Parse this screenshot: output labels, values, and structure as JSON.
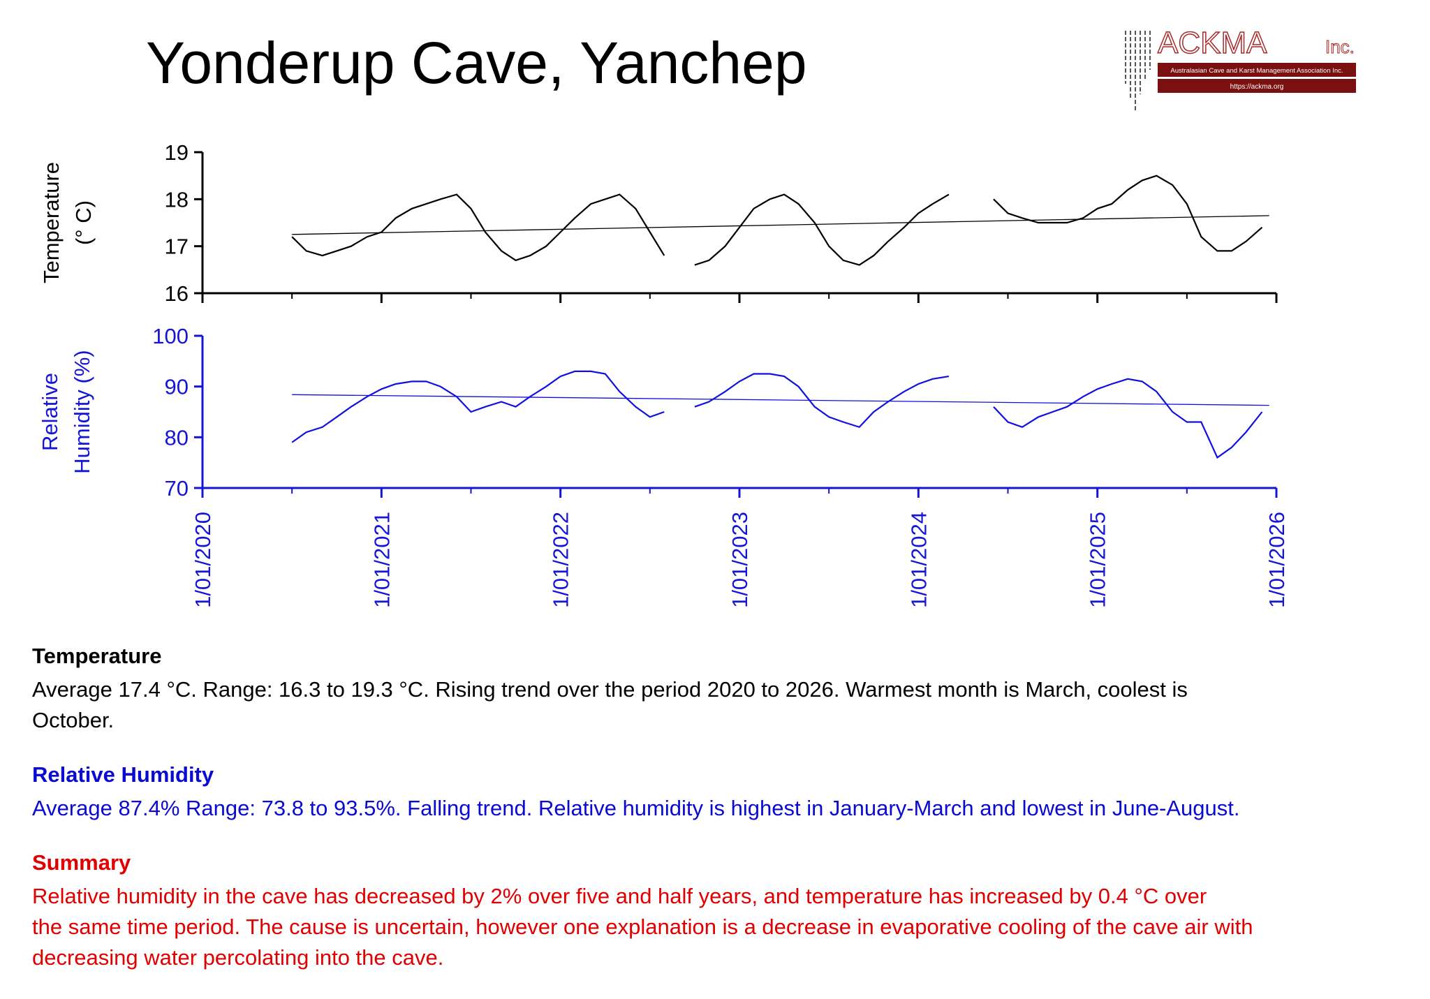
{
  "header": {
    "title": "Yonderup Cave, Yanchep"
  },
  "logo": {
    "name": "ACKMA",
    "suffix": "Inc.",
    "tagline": "Australasian Cave and Karst Management Association Inc.",
    "url": "https://ackma.org"
  },
  "chart_data": [
    {
      "type": "line",
      "ylabel": [
        "Temperature",
        "(° C)"
      ],
      "axis_color": "#000000",
      "xlim": [
        2020,
        2026
      ],
      "xticks": [
        2020,
        2021,
        2022,
        2023,
        2024,
        2025,
        2026
      ],
      "xminor": [
        2020.5,
        2021.5,
        2022.5,
        2023.5,
        2024.5,
        2025.5
      ],
      "ylim": [
        16,
        19
      ],
      "yticks": [
        16,
        17,
        18,
        19
      ],
      "x": [
        2020.5,
        2020.58,
        2020.67,
        2020.75,
        2020.83,
        2020.92,
        2021.0,
        2021.08,
        2021.17,
        2021.25,
        2021.33,
        2021.42,
        2021.5,
        2021.58,
        2021.67,
        2021.75,
        2021.83,
        2021.92,
        2022.0,
        2022.08,
        2022.17,
        2022.25,
        2022.33,
        2022.42,
        2022.5,
        2022.58,
        2022.67,
        2022.75,
        2022.83,
        2022.92,
        2023.0,
        2023.08,
        2023.17,
        2023.25,
        2023.33,
        2023.42,
        2023.5,
        2023.58,
        2023.67,
        2023.75,
        2023.83,
        2023.92,
        2024.0,
        2024.08,
        2024.17,
        2024.25,
        2024.33,
        2024.42,
        2024.5,
        2024.58,
        2024.67,
        2024.75,
        2024.83,
        2024.92,
        2025.0,
        2025.08,
        2025.17,
        2025.25,
        2025.33,
        2025.42,
        2025.5,
        2025.58,
        2025.67,
        2025.75,
        2025.83,
        2025.92
      ],
      "series": [
        {
          "color": "#000000",
          "values": [
            17.2,
            16.9,
            16.8,
            16.9,
            17.0,
            17.2,
            17.3,
            17.6,
            17.8,
            17.9,
            18.0,
            18.1,
            17.8,
            17.3,
            16.9,
            16.7,
            16.8,
            17.0,
            17.3,
            17.6,
            17.9,
            18.0,
            18.1,
            17.8,
            17.3,
            16.8,
            null,
            16.6,
            16.7,
            17.0,
            17.4,
            17.8,
            18.0,
            18.1,
            17.9,
            17.5,
            17.0,
            16.7,
            16.6,
            16.8,
            17.1,
            17.4,
            17.7,
            17.9,
            18.1,
            null,
            null,
            18.0,
            17.7,
            17.6,
            17.5,
            17.5,
            17.5,
            17.6,
            17.8,
            17.9,
            18.2,
            18.4,
            18.5,
            18.3,
            17.9,
            17.2,
            16.9,
            16.9,
            17.1,
            17.4
          ]
        },
        {
          "color": "#000000",
          "x": [
            2020.5,
            2025.96
          ],
          "values": [
            17.25,
            17.65
          ]
        }
      ]
    },
    {
      "type": "line",
      "ylabel": [
        "Relative",
        "Humidity (%)"
      ],
      "axis_color": "#1515d8",
      "xlim": [
        2020,
        2026
      ],
      "xticks": [
        {
          "value": 2020,
          "label": "1/01/2020"
        },
        {
          "value": 2021,
          "label": "1/01/2021"
        },
        {
          "value": 2022,
          "label": "1/01/2022"
        },
        {
          "value": 2023,
          "label": "1/01/2023"
        },
        {
          "value": 2024,
          "label": "1/01/2024"
        },
        {
          "value": 2025,
          "label": "1/01/2025"
        },
        {
          "value": 2026,
          "label": "1/01/2026"
        }
      ],
      "xminor": [
        2020.5,
        2021.5,
        2022.5,
        2023.5,
        2024.5,
        2025.5
      ],
      "ylim": [
        70,
        100
      ],
      "yticks": [
        70,
        80,
        90,
        100
      ],
      "x": [
        2020.5,
        2020.58,
        2020.67,
        2020.75,
        2020.83,
        2020.92,
        2021.0,
        2021.08,
        2021.17,
        2021.25,
        2021.33,
        2021.42,
        2021.5,
        2021.58,
        2021.67,
        2021.75,
        2021.83,
        2021.92,
        2022.0,
        2022.08,
        2022.17,
        2022.25,
        2022.33,
        2022.42,
        2022.5,
        2022.58,
        2022.67,
        2022.75,
        2022.83,
        2022.92,
        2023.0,
        2023.08,
        2023.17,
        2023.25,
        2023.33,
        2023.42,
        2023.5,
        2023.58,
        2023.67,
        2023.75,
        2023.83,
        2023.92,
        2024.0,
        2024.08,
        2024.17,
        2024.25,
        2024.33,
        2024.42,
        2024.5,
        2024.58,
        2024.67,
        2024.75,
        2024.83,
        2024.92,
        2025.0,
        2025.08,
        2025.17,
        2025.25,
        2025.33,
        2025.42,
        2025.5,
        2025.58,
        2025.67,
        2025.75,
        2025.83,
        2025.92
      ],
      "series": [
        {
          "color": "#1010e0",
          "values": [
            79,
            81,
            82,
            84,
            86,
            88,
            89.5,
            90.5,
            91,
            91,
            90,
            88,
            85,
            86,
            87,
            86,
            88,
            90,
            92,
            93,
            93,
            92.5,
            89,
            86,
            84,
            85,
            null,
            86,
            87,
            89,
            91,
            92.5,
            92.5,
            92,
            90,
            86,
            84,
            83,
            82,
            85,
            87,
            89,
            90.5,
            91.5,
            92,
            null,
            null,
            86,
            83,
            82,
            84,
            85,
            86,
            88,
            89.5,
            90.5,
            91.5,
            91,
            89,
            85,
            83,
            83,
            76,
            78,
            81,
            85
          ]
        },
        {
          "color": "#1010e0",
          "x": [
            2020.5,
            2025.96
          ],
          "values": [
            88.4,
            86.3
          ]
        }
      ]
    }
  ],
  "notes": [
    {
      "heading": "Temperature",
      "color": "#000000",
      "lines": [
        "Average 17.4 °C. Range: 16.3 to 19.3 °C. Rising trend over the period 2020 to 2026. Warmest month is March, coolest is",
        "October."
      ]
    },
    {
      "heading": "Relative Humidity",
      "color": "#0a0ad0",
      "lines": [
        "Average 87.4% Range: 73.8 to 93.5%. Falling trend. Relative humidity is highest in January-March and lowest in June-August."
      ]
    },
    {
      "heading": "Summary",
      "color": "#e00000",
      "lines": [
        "Relative humidity in the cave has decreased by 2% over five and half years, and temperature has increased by 0.4 °C over",
        "the same time period. The cause is uncertain, however one explanation is a decrease in evaporative cooling of the cave air with",
        "decreasing water percolating into the cave."
      ]
    }
  ]
}
